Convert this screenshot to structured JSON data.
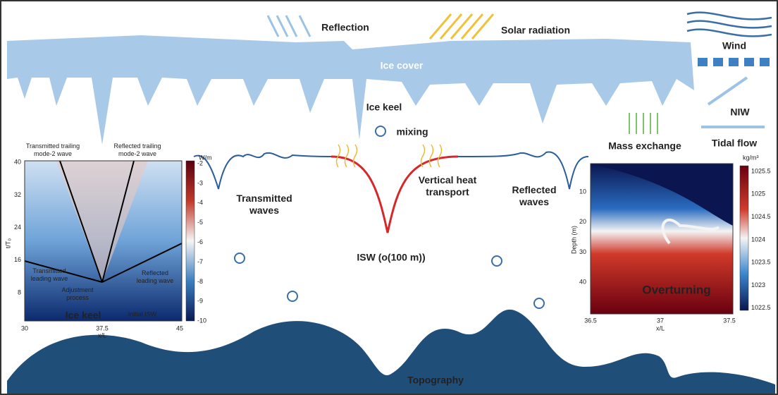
{
  "surface": {
    "reflection": "Reflection",
    "solar_radiation": "Solar radiation",
    "wind": "Wind",
    "ice_cover": "Ice cover",
    "ice_keel": "Ice keel",
    "niw": "NIW",
    "tidal_flow": "Tidal flow",
    "mixing": "mixing",
    "mass_exchange": "Mass exchange"
  },
  "ocean": {
    "transmitted_waves": [
      "Transmitted",
      "waves"
    ],
    "vertical_heat_transport": [
      "Vertical heat",
      "transport"
    ],
    "reflected_waves": [
      "Reflected",
      "waves"
    ],
    "isw": "ISW (o(100 m))",
    "topography": "Topography"
  },
  "left_inset": {
    "trailing_transmitted": [
      "Transmitted trailing",
      "mode-2 wave"
    ],
    "trailing_reflected": [
      "Reflected trailing",
      "mode-2 wave"
    ],
    "leading_transmitted": [
      "Transmitted",
      "leading wave"
    ],
    "leading_reflected": [
      "Reflected",
      "leading wave"
    ],
    "adjustment": [
      "Adjustment",
      "process"
    ],
    "ice_keel": "Ice keel",
    "initial_isw": "Initial ISW",
    "xlabel": "x/L",
    "ylabel": "t/T₀",
    "xticks": [
      "30",
      "37.5",
      "45"
    ],
    "yticks": [
      "8",
      "16",
      "24",
      "32",
      "40"
    ],
    "colorbar_unit": "W/m",
    "colorbar_ticks": [
      "-2",
      "-3",
      "-4",
      "-5",
      "-6",
      "-7",
      "-8",
      "-9",
      "-10"
    ]
  },
  "right_inset": {
    "overturning": "Overturning",
    "xlabel": "x/L",
    "ylabel": "Depth (m)",
    "xticks": [
      "36.5",
      "37",
      "37.5"
    ],
    "yticks": [
      "10",
      "20",
      "30",
      "40"
    ],
    "colorbar_unit": "kg/m³",
    "colorbar_ticks": [
      "1025.5",
      "1025",
      "1024.5",
      "1024",
      "1023.5",
      "1023",
      "1022.5"
    ]
  }
}
